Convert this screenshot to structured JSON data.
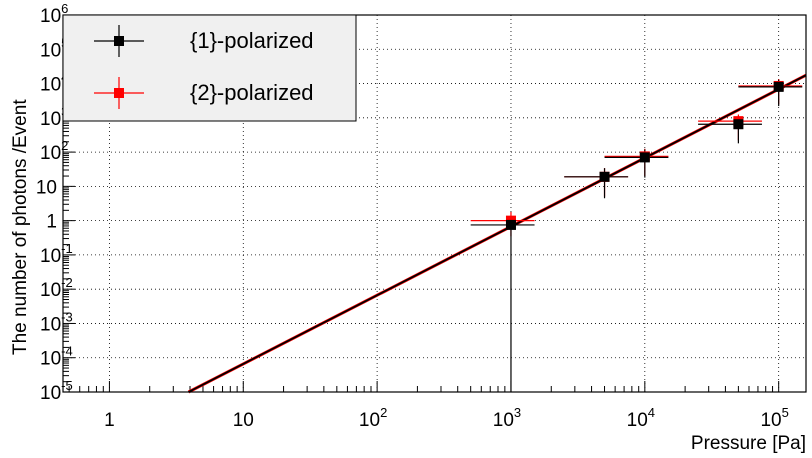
{
  "chart_data": {
    "type": "scatter",
    "title": "",
    "xlabel": "Pressure [Pa]",
    "ylabel": "The number of photons /Event",
    "x_scale": "log",
    "y_scale": "log",
    "xlim": [
      0.45,
      160000
    ],
    "ylim": [
      1e-05,
      1000000
    ],
    "grid": true,
    "legend_position": "top-left",
    "x_ticks": [
      {
        "value": 1,
        "mant": "1",
        "exp": ""
      },
      {
        "value": 10,
        "mant": "10",
        "exp": ""
      },
      {
        "value": 100,
        "mant": "10",
        "exp": "2"
      },
      {
        "value": 1000,
        "mant": "10",
        "exp": "3"
      },
      {
        "value": 10000,
        "mant": "10",
        "exp": "4"
      },
      {
        "value": 100000,
        "mant": "10",
        "exp": "5"
      }
    ],
    "y_ticks": [
      {
        "value": 1e-05,
        "mant": "10",
        "exp": "-5"
      },
      {
        "value": 0.0001,
        "mant": "10",
        "exp": "-4"
      },
      {
        "value": 0.001,
        "mant": "10",
        "exp": "-3"
      },
      {
        "value": 0.01,
        "mant": "10",
        "exp": "-2"
      },
      {
        "value": 0.1,
        "mant": "10",
        "exp": "-1"
      },
      {
        "value": 1,
        "mant": "1",
        "exp": ""
      },
      {
        "value": 10,
        "mant": "10",
        "exp": ""
      },
      {
        "value": 100,
        "mant": "10",
        "exp": "2"
      },
      {
        "value": 1000,
        "mant": "10",
        "exp": "3"
      },
      {
        "value": 10000,
        "mant": "10",
        "exp": "4"
      },
      {
        "value": 100000,
        "mant": "10",
        "exp": "5"
      },
      {
        "value": 1000000,
        "mant": "10",
        "exp": "6"
      }
    ],
    "series": [
      {
        "name": "{1}-polarized",
        "color": "#000000",
        "points": [
          {
            "x": 1000,
            "y": 0.75,
            "xerr": [
              500,
              1500
            ],
            "yerr": [
              1e-05,
              1.3
            ]
          },
          {
            "x": 5000,
            "y": 19,
            "xerr": [
              2500,
              7500
            ],
            "yerr": [
              4.5,
              34
            ]
          },
          {
            "x": 10000,
            "y": 70,
            "xerr": [
              5000,
              15000
            ],
            "yerr": [
              18,
              120
            ]
          },
          {
            "x": 50000,
            "y": 650,
            "xerr": [
              25000,
              75000
            ],
            "yerr": [
              180,
              1050
            ]
          },
          {
            "x": 100000,
            "y": 8000,
            "xerr": [
              50000,
              150000
            ],
            "yerr": [
              2200,
              13000
            ]
          }
        ]
      },
      {
        "name": "{2}-polarized",
        "color": "#ff0000",
        "points": [
          {
            "x": 1000,
            "y": 1.0,
            "xerr": [
              500,
              1500
            ],
            "yerr": [
              0.35,
              1.8
            ]
          },
          {
            "x": 5000,
            "y": 19,
            "xerr": [
              2500,
              7500
            ],
            "yerr": [
              5,
              34
            ]
          },
          {
            "x": 10000,
            "y": 75,
            "xerr": [
              5000,
              15000
            ],
            "yerr": [
              20,
              125
            ]
          },
          {
            "x": 50000,
            "y": 800,
            "xerr": [
              25000,
              75000
            ],
            "yerr": [
              220,
              1250
            ]
          },
          {
            "x": 100000,
            "y": 8500,
            "xerr": [
              50000,
              150000
            ],
            "yerr": [
              2500,
              13500
            ]
          }
        ]
      }
    ],
    "fits": [
      {
        "color": "#ff0000",
        "x": [
          3.9,
          160000
        ],
        "y": [
          1e-05,
          17500
        ]
      },
      {
        "color": "#000000",
        "x": [
          3.9,
          160000
        ],
        "y": [
          1e-05,
          17500
        ]
      }
    ]
  }
}
